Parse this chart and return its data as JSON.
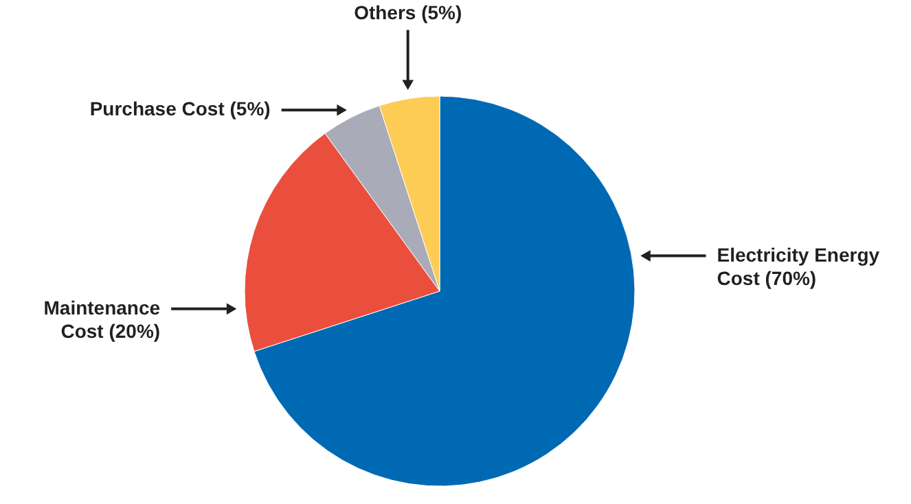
{
  "chart_data": {
    "type": "pie",
    "categories": [
      "Electricity Energy\nCost (70%)",
      "Maintenance\nCost (20%)",
      "Purchase Cost (5%)",
      "Others (5%)"
    ],
    "values": [
      70,
      20,
      5,
      5
    ],
    "colors": [
      "#0069b4",
      "#ea4f3d",
      "#a9abb8",
      "#fccc55"
    ]
  }
}
